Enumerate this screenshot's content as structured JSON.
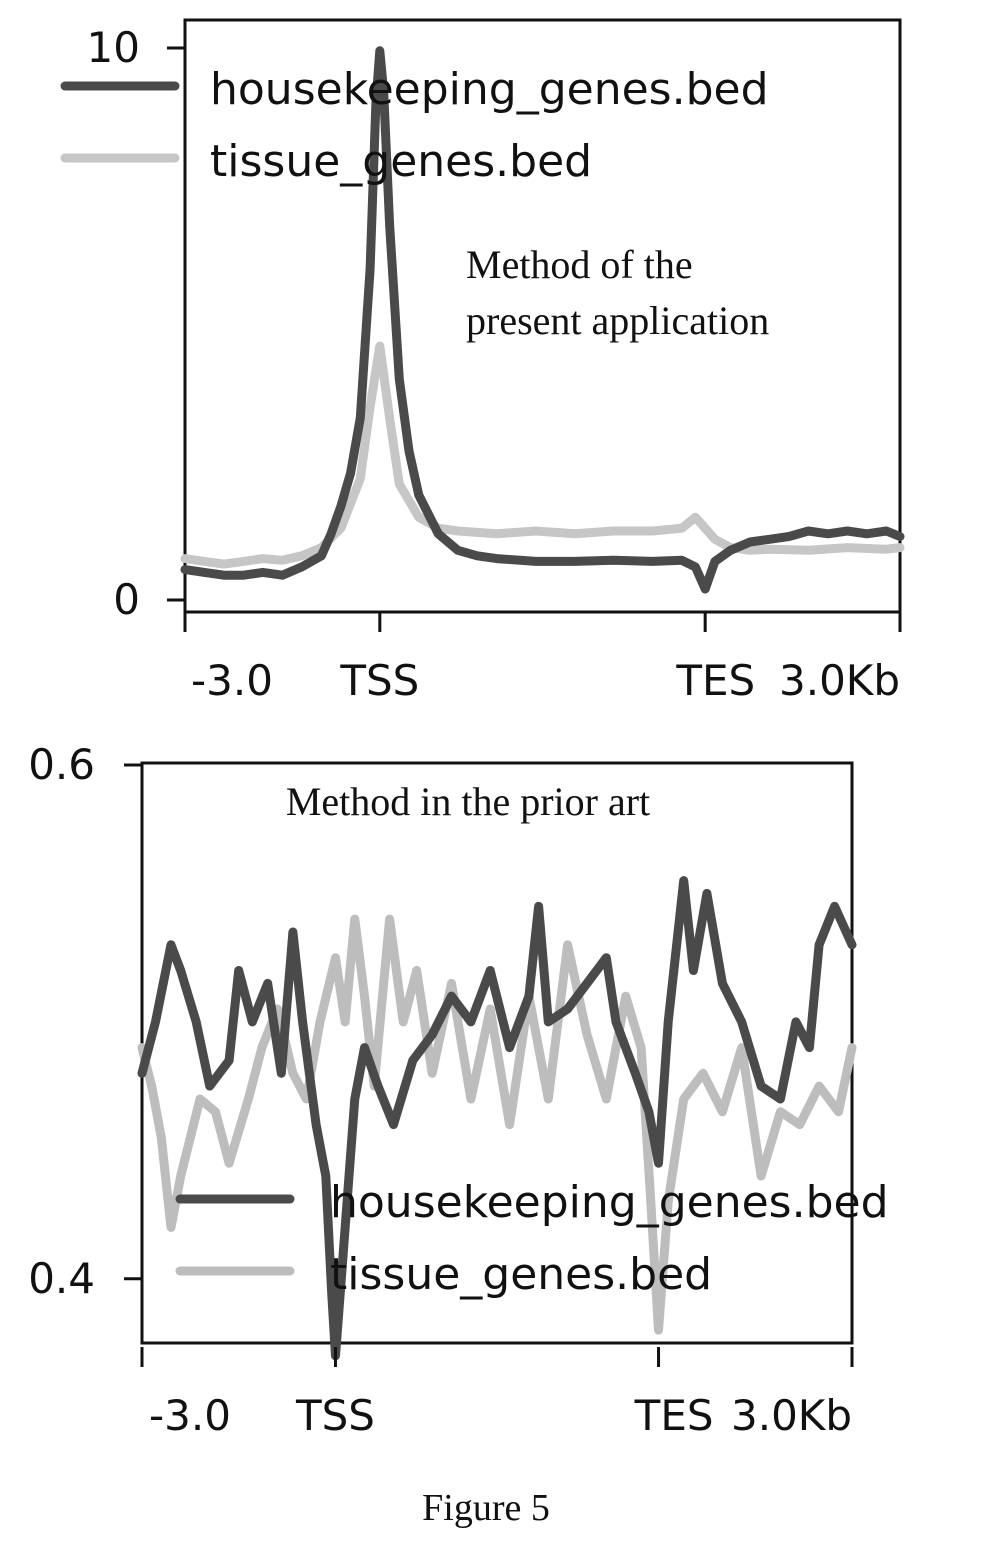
{
  "caption": "Figure 5",
  "chart_data": [
    {
      "type": "line",
      "annotation": [
        "Method of the",
        "present application"
      ],
      "x_ticks": [
        "-3.0",
        "TSS",
        "TES",
        "3.0Kb"
      ],
      "y_ticks": [
        "0",
        "10"
      ],
      "ylim": [
        0,
        10
      ],
      "legend_position": "top-left",
      "grid": false,
      "x_axis": "profile region: 3.0 Kb upstream, TSS, scaled gene body, TES, 3.0 Kb downstream",
      "x_positions": {
        "-3.0": 0,
        "TSS": 1,
        "TES": 2.67,
        "3.0Kb": 3.67
      },
      "series": [
        {
          "name": "housekeeping_genes.bed",
          "color": "#4a4a4a",
          "points": [
            [
              0,
              0.55
            ],
            [
              0.1,
              0.5
            ],
            [
              0.2,
              0.45
            ],
            [
              0.3,
              0.45
            ],
            [
              0.4,
              0.5
            ],
            [
              0.5,
              0.45
            ],
            [
              0.6,
              0.6
            ],
            [
              0.7,
              0.8
            ],
            [
              0.75,
              1.2
            ],
            [
              0.8,
              1.7
            ],
            [
              0.85,
              2.3
            ],
            [
              0.9,
              3.3
            ],
            [
              0.95,
              6
            ],
            [
              0.98,
              9
            ],
            [
              1.0,
              9.95
            ],
            [
              1.02,
              9.2
            ],
            [
              1.05,
              6.8
            ],
            [
              1.1,
              4
            ],
            [
              1.15,
              2.7
            ],
            [
              1.2,
              1.9
            ],
            [
              1.3,
              1.2
            ],
            [
              1.4,
              0.9
            ],
            [
              1.5,
              0.8
            ],
            [
              1.6,
              0.75
            ],
            [
              1.8,
              0.7
            ],
            [
              2.0,
              0.7
            ],
            [
              2.2,
              0.72
            ],
            [
              2.4,
              0.7
            ],
            [
              2.55,
              0.72
            ],
            [
              2.62,
              0.6
            ],
            [
              2.67,
              0.2
            ],
            [
              2.72,
              0.7
            ],
            [
              2.8,
              0.9
            ],
            [
              2.9,
              1.05
            ],
            [
              3.0,
              1.1
            ],
            [
              3.1,
              1.15
            ],
            [
              3.2,
              1.25
            ],
            [
              3.3,
              1.2
            ],
            [
              3.4,
              1.25
            ],
            [
              3.5,
              1.2
            ],
            [
              3.6,
              1.25
            ],
            [
              3.67,
              1.15
            ]
          ]
        },
        {
          "name": "tissue_genes.bed",
          "color": "#c6c6c6",
          "points": [
            [
              0,
              0.75
            ],
            [
              0.1,
              0.7
            ],
            [
              0.2,
              0.65
            ],
            [
              0.3,
              0.7
            ],
            [
              0.4,
              0.75
            ],
            [
              0.5,
              0.72
            ],
            [
              0.6,
              0.8
            ],
            [
              0.7,
              0.95
            ],
            [
              0.8,
              1.3
            ],
            [
              0.9,
              2.2
            ],
            [
              0.95,
              3.5
            ],
            [
              1.0,
              4.6
            ],
            [
              1.05,
              3.3
            ],
            [
              1.1,
              2.1
            ],
            [
              1.2,
              1.5
            ],
            [
              1.3,
              1.3
            ],
            [
              1.4,
              1.25
            ],
            [
              1.6,
              1.2
            ],
            [
              1.8,
              1.25
            ],
            [
              2.0,
              1.2
            ],
            [
              2.2,
              1.25
            ],
            [
              2.4,
              1.25
            ],
            [
              2.55,
              1.3
            ],
            [
              2.62,
              1.5
            ],
            [
              2.67,
              1.3
            ],
            [
              2.72,
              1.1
            ],
            [
              2.8,
              0.95
            ],
            [
              2.9,
              0.9
            ],
            [
              3.0,
              0.92
            ],
            [
              3.2,
              0.9
            ],
            [
              3.4,
              0.95
            ],
            [
              3.6,
              0.92
            ],
            [
              3.67,
              0.95
            ]
          ]
        }
      ]
    },
    {
      "type": "line",
      "annotation": [
        "Method in the prior art"
      ],
      "x_ticks": [
        "-3.0",
        "TSS",
        "TES",
        "3.0Kb"
      ],
      "y_ticks": [
        "0.4",
        "0.6"
      ],
      "ylim": [
        0.375,
        0.6
      ],
      "legend_position": "lower-center",
      "grid": false,
      "x_axis": "profile region: 3.0 Kb upstream, TSS, scaled gene body, TES, 3.0 Kb downstream",
      "x_positions": {
        "-3.0": 0,
        "TSS": 1,
        "TES": 2.67,
        "3.0Kb": 3.67
      },
      "series": [
        {
          "name": "housekeeping_genes.bed",
          "color": "#4a4a4a",
          "points": [
            [
              0,
              0.48
            ],
            [
              0.07,
              0.5
            ],
            [
              0.15,
              0.53
            ],
            [
              0.2,
              0.52
            ],
            [
              0.28,
              0.5
            ],
            [
              0.35,
              0.475
            ],
            [
              0.45,
              0.485
            ],
            [
              0.5,
              0.52
            ],
            [
              0.57,
              0.5
            ],
            [
              0.65,
              0.515
            ],
            [
              0.72,
              0.48
            ],
            [
              0.78,
              0.535
            ],
            [
              0.83,
              0.5
            ],
            [
              0.9,
              0.46
            ],
            [
              0.95,
              0.44
            ],
            [
              0.98,
              0.395
            ],
            [
              1.0,
              0.37
            ],
            [
              1.03,
              0.4
            ],
            [
              1.07,
              0.44
            ],
            [
              1.1,
              0.47
            ],
            [
              1.15,
              0.49
            ],
            [
              1.22,
              0.475
            ],
            [
              1.3,
              0.46
            ],
            [
              1.4,
              0.485
            ],
            [
              1.5,
              0.495
            ],
            [
              1.6,
              0.51
            ],
            [
              1.7,
              0.5
            ],
            [
              1.8,
              0.52
            ],
            [
              1.9,
              0.49
            ],
            [
              2.0,
              0.51
            ],
            [
              2.05,
              0.545
            ],
            [
              2.1,
              0.5
            ],
            [
              2.2,
              0.505
            ],
            [
              2.3,
              0.515
            ],
            [
              2.4,
              0.525
            ],
            [
              2.45,
              0.5
            ],
            [
              2.55,
              0.48
            ],
            [
              2.62,
              0.465
            ],
            [
              2.67,
              0.445
            ],
            [
              2.72,
              0.5
            ],
            [
              2.8,
              0.555
            ],
            [
              2.85,
              0.52
            ],
            [
              2.92,
              0.55
            ],
            [
              3.0,
              0.515
            ],
            [
              3.1,
              0.5
            ],
            [
              3.2,
              0.475
            ],
            [
              3.3,
              0.47
            ],
            [
              3.38,
              0.5
            ],
            [
              3.45,
              0.49
            ],
            [
              3.5,
              0.53
            ],
            [
              3.58,
              0.545
            ],
            [
              3.67,
              0.53
            ]
          ]
        },
        {
          "name": "tissue_genes.bed",
          "color": "#bdbdbd",
          "points": [
            [
              0,
              0.49
            ],
            [
              0.05,
              0.475
            ],
            [
              0.1,
              0.455
            ],
            [
              0.15,
              0.42
            ],
            [
              0.2,
              0.44
            ],
            [
              0.3,
              0.47
            ],
            [
              0.38,
              0.465
            ],
            [
              0.45,
              0.445
            ],
            [
              0.55,
              0.47
            ],
            [
              0.62,
              0.49
            ],
            [
              0.7,
              0.505
            ],
            [
              0.78,
              0.48
            ],
            [
              0.85,
              0.47
            ],
            [
              0.92,
              0.5
            ],
            [
              1.0,
              0.525
            ],
            [
              1.05,
              0.5
            ],
            [
              1.1,
              0.54
            ],
            [
              1.15,
              0.51
            ],
            [
              1.2,
              0.475
            ],
            [
              1.28,
              0.54
            ],
            [
              1.35,
              0.5
            ],
            [
              1.42,
              0.52
            ],
            [
              1.5,
              0.48
            ],
            [
              1.6,
              0.515
            ],
            [
              1.7,
              0.47
            ],
            [
              1.8,
              0.505
            ],
            [
              1.9,
              0.46
            ],
            [
              2.0,
              0.51
            ],
            [
              2.1,
              0.47
            ],
            [
              2.2,
              0.53
            ],
            [
              2.3,
              0.495
            ],
            [
              2.4,
              0.47
            ],
            [
              2.5,
              0.51
            ],
            [
              2.58,
              0.49
            ],
            [
              2.63,
              0.43
            ],
            [
              2.67,
              0.38
            ],
            [
              2.72,
              0.43
            ],
            [
              2.8,
              0.47
            ],
            [
              2.9,
              0.48
            ],
            [
              3.0,
              0.465
            ],
            [
              3.1,
              0.49
            ],
            [
              3.2,
              0.44
            ],
            [
              3.3,
              0.465
            ],
            [
              3.4,
              0.46
            ],
            [
              3.5,
              0.475
            ],
            [
              3.6,
              0.465
            ],
            [
              3.67,
              0.49
            ]
          ]
        }
      ]
    }
  ]
}
